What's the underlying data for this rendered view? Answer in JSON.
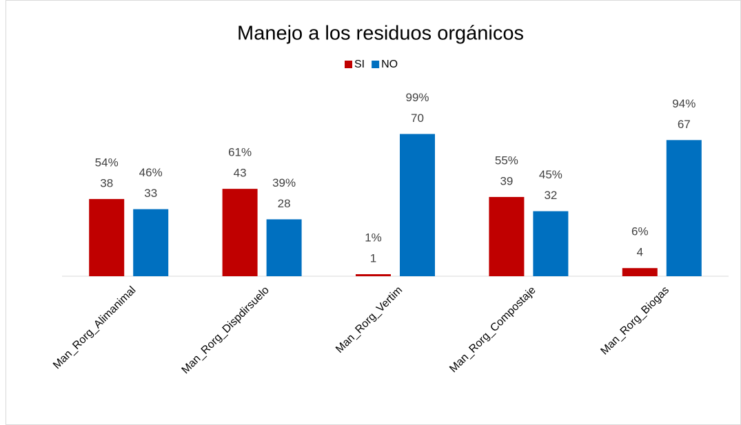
{
  "chart_data": {
    "type": "bar",
    "title": "Manejo a los residuos orgánicos",
    "categories": [
      "Man_Rorg_Alimanimal",
      "Man_Rorg_Dispdirsuelo",
      "Man_Rorg_Vertim",
      "Man_Rorg_Compostaje",
      "Man_Rorg_Biogas"
    ],
    "series": [
      {
        "name": "SI",
        "color": "#c00000",
        "values": [
          38,
          43,
          1,
          39,
          4
        ],
        "percent_labels": [
          "54%",
          "61%",
          "1%",
          "55%",
          "6%"
        ]
      },
      {
        "name": "NO",
        "color": "#0070c0",
        "values": [
          33,
          28,
          70,
          32,
          67
        ],
        "percent_labels": [
          "46%",
          "39%",
          "99%",
          "45%",
          "94%"
        ]
      }
    ],
    "ylim": [
      0,
      80
    ],
    "legend": "top"
  }
}
